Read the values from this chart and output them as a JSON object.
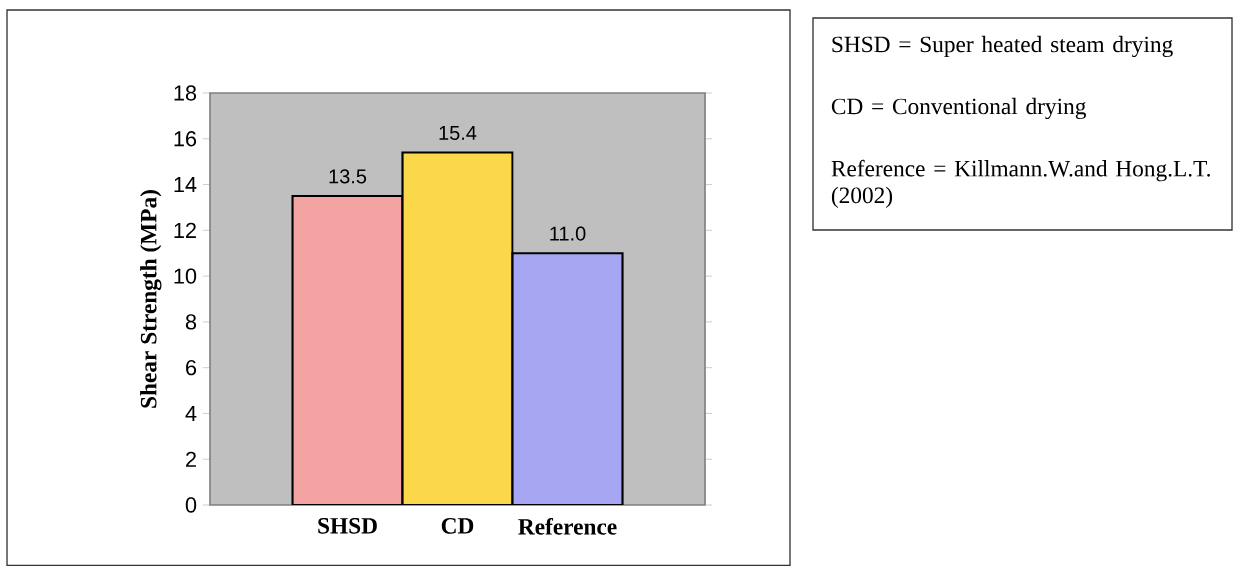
{
  "chart_data": {
    "type": "bar",
    "ylabel": "Shear Strength (MPa)",
    "categories": [
      "SHSD",
      "CD",
      "Reference"
    ],
    "values": [
      13.5,
      15.4,
      11.0
    ],
    "colors": [
      "#f4a3a3",
      "#fbd84a",
      "#a6a6f2"
    ],
    "value_labels": [
      "13.5",
      "15.4",
      "11.0"
    ],
    "ylim": [
      0,
      18
    ],
    "yticks": [
      0,
      2,
      4,
      6,
      8,
      10,
      12,
      14,
      16,
      18
    ],
    "annotations": [
      "SHSD = Super heated steam drying",
      "CD = Conventional drying",
      "Reference = Killmann.W.and Hong.L.T. (2002)"
    ]
  }
}
